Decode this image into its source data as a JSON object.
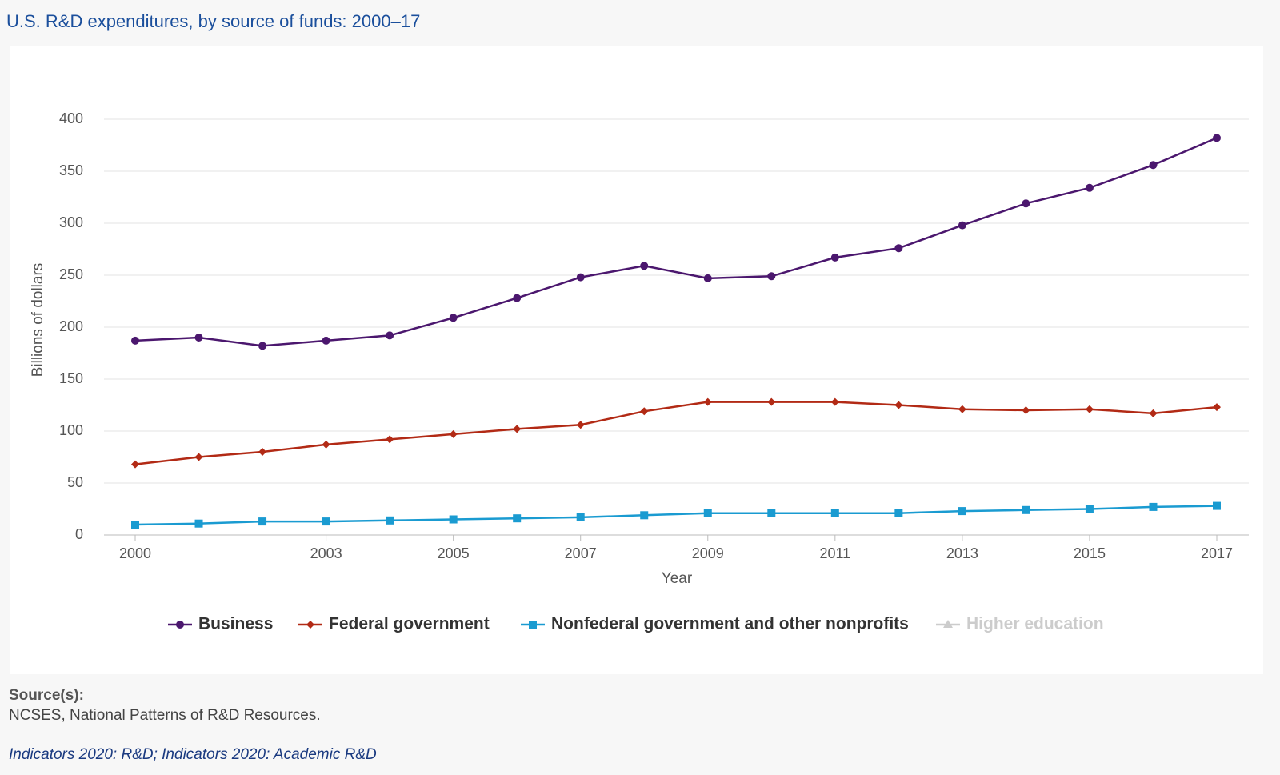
{
  "chart_data": {
    "type": "line",
    "title": "U.S. R&D expenditures, by source of funds: 2000–17",
    "ylabel": "Billions of dollars",
    "xlabel": "Year",
    "x": [
      2000,
      2001,
      2002,
      2003,
      2004,
      2005,
      2006,
      2007,
      2008,
      2009,
      2010,
      2011,
      2012,
      2013,
      2014,
      2015,
      2016,
      2017
    ],
    "xlim": [
      2000,
      2017
    ],
    "xticks": [
      2000,
      2003,
      2005,
      2007,
      2009,
      2011,
      2013,
      2015,
      2017
    ],
    "ylim": [
      0,
      400
    ],
    "yticks": [
      0,
      50,
      100,
      150,
      200,
      250,
      300,
      350,
      400
    ],
    "grid": true,
    "legend": "bottom",
    "series": [
      {
        "name": "Business",
        "color": "#4b176e",
        "marker": "circle",
        "values": [
          187,
          190,
          182,
          187,
          192,
          209,
          228,
          248,
          259,
          247,
          249,
          267,
          276,
          298,
          319,
          334,
          356,
          382
        ]
      },
      {
        "name": "Federal government",
        "color": "#b22a15",
        "marker": "diamond",
        "values": [
          68,
          75,
          80,
          87,
          92,
          97,
          102,
          106,
          119,
          128,
          128,
          128,
          125,
          121,
          120,
          121,
          117,
          123
        ]
      },
      {
        "name": "Nonfederal government and other nonprofits",
        "color": "#1a9bd1",
        "marker": "square",
        "values": [
          10,
          11,
          13,
          13,
          14,
          15,
          16,
          17,
          19,
          21,
          21,
          21,
          21,
          23,
          24,
          25,
          27,
          28
        ]
      },
      {
        "name": "Higher education",
        "color": "#cccccc",
        "marker": "triangle",
        "visible": false
      }
    ]
  },
  "source": {
    "heading": "Source(s):",
    "text": "NCSES, National Patterns of R&D Resources.",
    "link": "Indicators 2020: R&D; Indicators 2020: Academic R&D"
  }
}
